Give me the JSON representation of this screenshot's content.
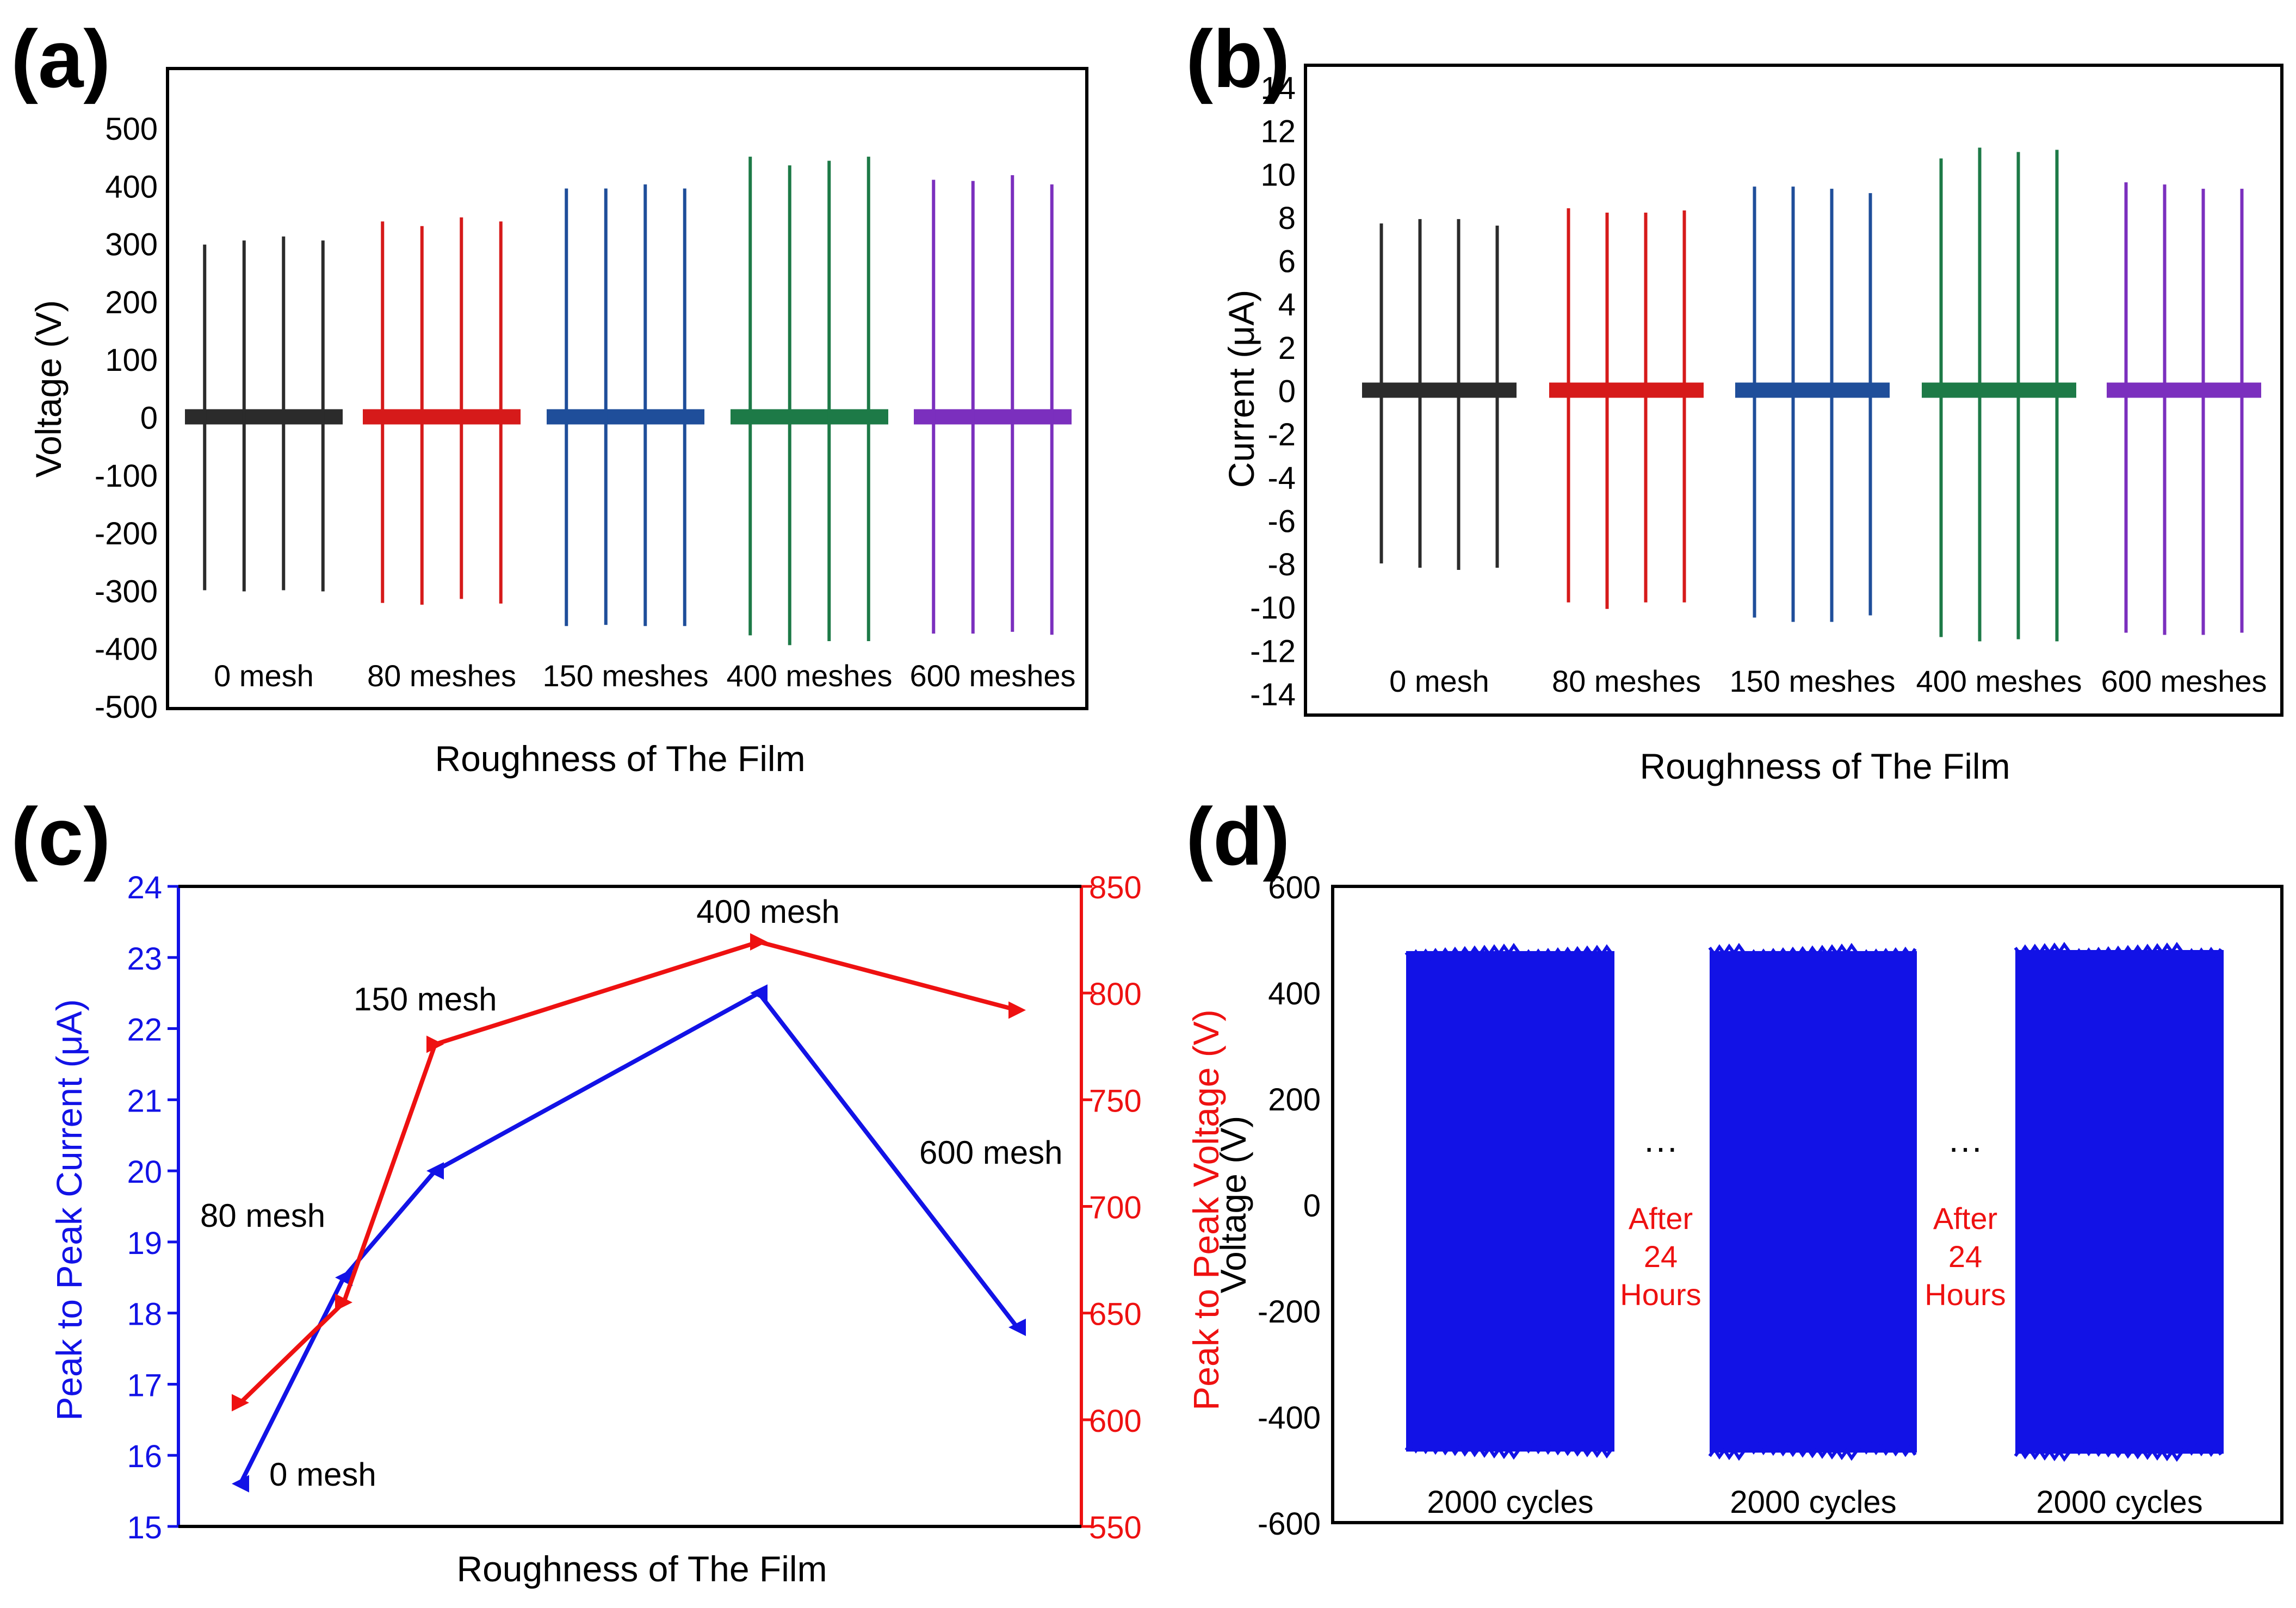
{
  "colors": {
    "black": "#2b2b2b",
    "red": "#d61a1a",
    "blue": "#1f4e9a",
    "green": "#1d7a47",
    "purple": "#7b2fbe",
    "pure_blue": "#1212e6",
    "pure_red": "#ee1111",
    "axis": "#000000"
  },
  "chart_data": [
    {
      "id": "a",
      "panel_label": "(a)",
      "type": "line",
      "xlabel": "Roughness of The Film",
      "ylabel": "Voltage (V)",
      "ylim": [
        -500,
        500
      ],
      "yticks": [
        500,
        400,
        300,
        200,
        100,
        0,
        -100,
        -200,
        -300,
        -400,
        -500
      ],
      "series": [
        {
          "name": "0 mesh",
          "color": "black",
          "peaks_pos": [
            298,
            305,
            312,
            305
          ],
          "peaks_neg": [
            -300,
            -302,
            -300,
            -302
          ]
        },
        {
          "name": "80 meshes",
          "color": "red",
          "peaks_pos": [
            338,
            330,
            345,
            338
          ],
          "peaks_neg": [
            -322,
            -325,
            -315,
            -323
          ]
        },
        {
          "name": "150 meshes",
          "color": "blue",
          "peaks_pos": [
            395,
            395,
            402,
            395
          ],
          "peaks_neg": [
            -362,
            -360,
            -362,
            -362
          ]
        },
        {
          "name": "400 meshes",
          "color": "green",
          "peaks_pos": [
            450,
            435,
            443,
            450
          ],
          "peaks_neg": [
            -378,
            -395,
            -388,
            -388
          ]
        },
        {
          "name": "600 meshes",
          "color": "purple",
          "peaks_pos": [
            410,
            408,
            418,
            402
          ],
          "peaks_neg": [
            -375,
            -375,
            -372,
            -377
          ]
        }
      ],
      "group_labels": [
        "0 mesh",
        "80 meshes",
        "150 meshes",
        "400 meshes",
        "600 meshes"
      ]
    },
    {
      "id": "b",
      "panel_label": "(b)",
      "type": "line",
      "xlabel": "Roughness of The Film",
      "ylabel": "Current (μA)",
      "ylim": [
        -14,
        14
      ],
      "yticks": [
        14,
        12,
        10,
        8,
        6,
        4,
        2,
        0,
        -2,
        -4,
        -6,
        -8,
        -10,
        -12,
        -14
      ],
      "series": [
        {
          "name": "0 mesh",
          "color": "black",
          "peaks_pos": [
            7.7,
            7.9,
            7.9,
            7.6
          ],
          "peaks_neg": [
            -8.0,
            -8.2,
            -8.3,
            -8.2
          ]
        },
        {
          "name": "80 meshes",
          "color": "red",
          "peaks_pos": [
            8.4,
            8.2,
            8.2,
            8.3
          ],
          "peaks_neg": [
            -9.8,
            -10.1,
            -9.8,
            -9.8
          ]
        },
        {
          "name": "150 meshes",
          "color": "blue",
          "peaks_pos": [
            9.4,
            9.4,
            9.3,
            9.1
          ],
          "peaks_neg": [
            -10.5,
            -10.7,
            -10.7,
            -10.4
          ]
        },
        {
          "name": "400 meshes",
          "color": "green",
          "peaks_pos": [
            10.7,
            11.2,
            11.0,
            11.1
          ],
          "peaks_neg": [
            -11.4,
            -11.6,
            -11.5,
            -11.6
          ]
        },
        {
          "name": "600 meshes",
          "color": "purple",
          "peaks_pos": [
            9.6,
            9.5,
            9.3,
            9.3
          ],
          "peaks_neg": [
            -11.2,
            -11.3,
            -11.3,
            -11.2
          ]
        }
      ],
      "group_labels": [
        "0 mesh",
        "80 meshes",
        "150 meshes",
        "400 meshes",
        "600 meshes"
      ]
    },
    {
      "id": "c",
      "panel_label": "(c)",
      "type": "line",
      "xlabel": "Roughness of The Film",
      "categories": [
        "0 mesh",
        "80 mesh",
        "150 mesh",
        "400 mesh",
        "600 mesh"
      ],
      "ylabel_left": "Peak to Peak Current (μA)",
      "ylabel_right": "Peak to Peak Voltage (V)",
      "ylim_left": [
        15,
        24
      ],
      "ylim_right": [
        550,
        850
      ],
      "yticks_left": [
        15,
        16,
        17,
        18,
        19,
        20,
        21,
        22,
        23,
        24
      ],
      "yticks_right": [
        550,
        600,
        650,
        700,
        750,
        800,
        850
      ],
      "series": [
        {
          "axis": "left",
          "color": "pure_blue",
          "values": [
            15.6,
            18.5,
            20.0,
            22.5,
            17.8
          ]
        },
        {
          "axis": "right",
          "color": "pure_red",
          "values": [
            608,
            655,
            776,
            824,
            792
          ]
        }
      ]
    },
    {
      "id": "d",
      "panel_label": "(d)",
      "type": "line",
      "ylabel": "Voltage (V)",
      "ylim": [
        -600,
        600
      ],
      "yticks": [
        600,
        400,
        200,
        0,
        -200,
        -400,
        -600
      ],
      "blocks": [
        {
          "label": "2000 cycles",
          "pos_max": 488,
          "neg_min": -476
        },
        {
          "label": "2000 cycles",
          "pos_max": 488,
          "neg_min": -478
        },
        {
          "label": "2000 cycles",
          "pos_max": 490,
          "neg_min": -480
        }
      ],
      "gap_dots": "···",
      "gap_text": [
        "After",
        "24",
        "Hours"
      ]
    }
  ]
}
